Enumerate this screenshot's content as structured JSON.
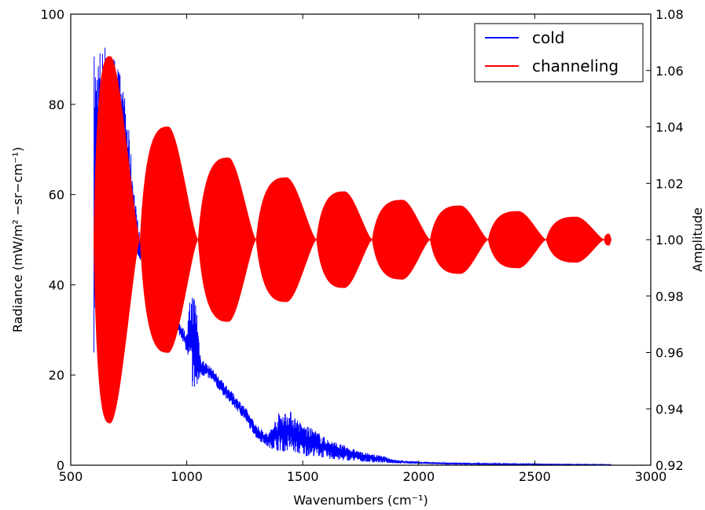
{
  "chart_data": {
    "type": "line",
    "title": "",
    "xlabel": "Wavenumbers (cm⁻¹)",
    "ylabel_left": "Radiance (mW/m² −sr−cm⁻¹)",
    "ylabel_right": "Amplitude",
    "xlim": [
      500,
      3000
    ],
    "ylim_left": [
      0,
      100
    ],
    "ylim_right": [
      0.92,
      1.08
    ],
    "x_ticks": [
      "500",
      "1000",
      "1500",
      "2000",
      "2500",
      "3000"
    ],
    "y_left_ticks": [
      "0",
      "20",
      "40",
      "60",
      "80",
      "100"
    ],
    "y_right_ticks": [
      "0.92",
      "0.94",
      "0.96",
      "0.98",
      "1.00",
      "1.02",
      "1.04",
      "1.06",
      "1.08"
    ],
    "grid": false,
    "legend": {
      "position": "top-right"
    },
    "series": [
      {
        "name": "cold",
        "axis": "left",
        "color": "#0000ff",
        "style": "noisy-band",
        "points": [
          {
            "x": 600,
            "lo": 25,
            "hi": 93
          },
          {
            "x": 650,
            "lo": 55,
            "hi": 94
          },
          {
            "x": 700,
            "lo": 60,
            "hi": 90
          },
          {
            "x": 740,
            "lo": 55,
            "hi": 80
          },
          {
            "x": 780,
            "lo": 48,
            "hi": 58
          },
          {
            "x": 800,
            "lo": 45,
            "hi": 50
          },
          {
            "x": 850,
            "lo": 40,
            "hi": 44
          },
          {
            "x": 900,
            "lo": 36,
            "hi": 40
          },
          {
            "x": 950,
            "lo": 30,
            "hi": 33
          },
          {
            "x": 980,
            "lo": 28,
            "hi": 31
          },
          {
            "x": 1000,
            "lo": 25,
            "hi": 29
          },
          {
            "x": 1010,
            "lo": 22,
            "hi": 35
          },
          {
            "x": 1020,
            "lo": 18,
            "hi": 39
          },
          {
            "x": 1040,
            "lo": 14,
            "hi": 38
          },
          {
            "x": 1060,
            "lo": 20,
            "hi": 24
          },
          {
            "x": 1100,
            "lo": 19,
            "hi": 22
          },
          {
            "x": 1150,
            "lo": 16,
            "hi": 19
          },
          {
            "x": 1200,
            "lo": 13,
            "hi": 16
          },
          {
            "x": 1250,
            "lo": 10,
            "hi": 13
          },
          {
            "x": 1300,
            "lo": 6,
            "hi": 9
          },
          {
            "x": 1350,
            "lo": 4,
            "hi": 7
          },
          {
            "x": 1400,
            "lo": 3,
            "hi": 12
          },
          {
            "x": 1450,
            "lo": 3,
            "hi": 12
          },
          {
            "x": 1500,
            "lo": 2,
            "hi": 9
          },
          {
            "x": 1550,
            "lo": 2,
            "hi": 8
          },
          {
            "x": 1600,
            "lo": 1.5,
            "hi": 6
          },
          {
            "x": 1650,
            "lo": 1,
            "hi": 5
          },
          {
            "x": 1700,
            "lo": 1,
            "hi": 4
          },
          {
            "x": 1750,
            "lo": 0.8,
            "hi": 3
          },
          {
            "x": 1800,
            "lo": 0.6,
            "hi": 2.5
          },
          {
            "x": 1850,
            "lo": 0.5,
            "hi": 2
          },
          {
            "x": 1900,
            "lo": 0.4,
            "hi": 1.2
          },
          {
            "x": 2000,
            "lo": 0.3,
            "hi": 0.8
          },
          {
            "x": 2100,
            "lo": 0.2,
            "hi": 0.6
          },
          {
            "x": 2250,
            "lo": 0.1,
            "hi": 0.5
          },
          {
            "x": 2400,
            "lo": 0.1,
            "hi": 0.3
          },
          {
            "x": 2600,
            "lo": 0.05,
            "hi": 0.2
          },
          {
            "x": 2830,
            "lo": 0.05,
            "hi": 0.15
          }
        ]
      },
      {
        "name": "channeling",
        "axis": "right",
        "color": "#ff0000",
        "style": "envelope",
        "lobes": [
          {
            "start": 600,
            "peak": 670,
            "end": 800,
            "max": 1.065,
            "min": 0.935
          },
          {
            "start": 800,
            "peak": 920,
            "end": 1050,
            "max": 1.04,
            "min": 0.96
          },
          {
            "start": 1050,
            "peak": 1180,
            "end": 1300,
            "max": 1.029,
            "min": 0.971
          },
          {
            "start": 1300,
            "peak": 1430,
            "end": 1560,
            "max": 1.022,
            "min": 0.978
          },
          {
            "start": 1560,
            "peak": 1680,
            "end": 1800,
            "max": 1.017,
            "min": 0.983
          },
          {
            "start": 1800,
            "peak": 1930,
            "end": 2050,
            "max": 1.014,
            "min": 0.986
          },
          {
            "start": 2050,
            "peak": 2180,
            "end": 2300,
            "max": 1.012,
            "min": 0.988
          },
          {
            "start": 2300,
            "peak": 2430,
            "end": 2550,
            "max": 1.01,
            "min": 0.99
          },
          {
            "start": 2550,
            "peak": 2680,
            "end": 2800,
            "max": 1.008,
            "min": 0.992
          },
          {
            "start": 2800,
            "peak": 2820,
            "end": 2830,
            "max": 1.002,
            "min": 0.998
          }
        ]
      }
    ]
  }
}
